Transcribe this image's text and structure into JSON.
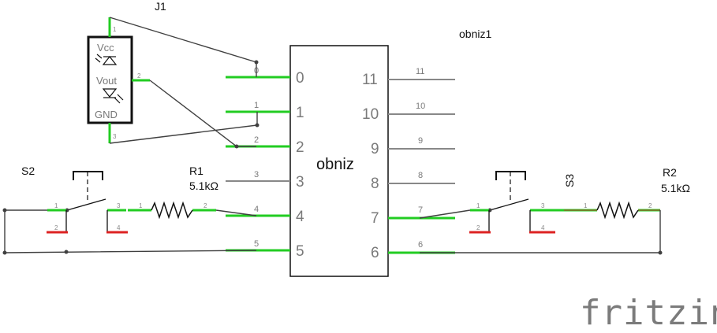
{
  "logo": {
    "text": "fritzing"
  },
  "obniz": {
    "ref": "obniz1",
    "label": "obniz",
    "left_pins": [
      "0",
      "1",
      "2",
      "3",
      "4",
      "5"
    ],
    "right_pins": [
      "11",
      "10",
      "9",
      "8",
      "7",
      "6"
    ]
  },
  "j1": {
    "ref": "J1",
    "vcc": "Vcc",
    "vout": "Vout",
    "gnd": "GND",
    "pin1": "1",
    "pin2": "2",
    "pin3": "3"
  },
  "r1": {
    "ref": "R1",
    "value": "5.1kΩ",
    "pin1": "1",
    "pin2": "2"
  },
  "r2": {
    "ref": "R2",
    "value": "5.1kΩ",
    "pin1": "1",
    "pin2": "2"
  },
  "s2": {
    "ref": "S2",
    "pin1": "1",
    "pin2": "2",
    "pin3": "3",
    "pin4": "4"
  },
  "s3": {
    "ref": "S3",
    "pin1": "1",
    "pin2": "2",
    "pin3": "3",
    "pin4": "4"
  },
  "colors": {
    "pin_green": "#22cc22",
    "pin_red": "#dd2222",
    "wire": "#404040",
    "pin_gray": "#888888"
  }
}
